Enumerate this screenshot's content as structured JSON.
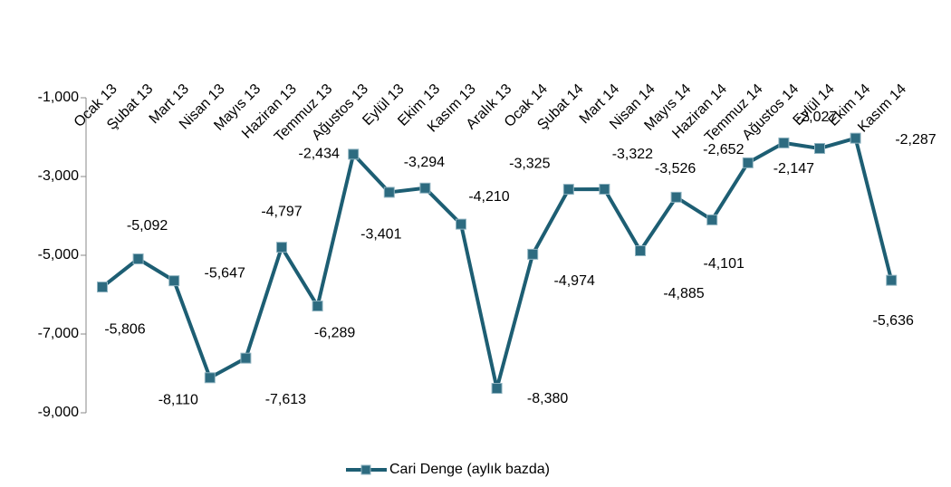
{
  "chart_data": {
    "type": "line",
    "categories": [
      "Ocak 13",
      "Şubat 13",
      "Mart 13",
      "Nisan 13",
      "Mayıs 13",
      "Haziran 13",
      "Temmuz 13",
      "Ağustos 13",
      "Eylül 13",
      "Ekim 13",
      "Kasım 13",
      "Aralık 13",
      "Ocak 14",
      "Şubat 14",
      "Mart 14",
      "Nisan 14",
      "Mayıs 14",
      "Haziran 14",
      "Temmuz 14",
      "Ağustos 14",
      "Eylül 14",
      "Ekim 14",
      "Kasım 14"
    ],
    "series": [
      {
        "name": "Cari Denge (aylık bazda)",
        "color": "#1d5e73",
        "values": [
          -5806,
          -5092,
          -5647,
          -8110,
          -7613,
          -4797,
          -6289,
          -2434,
          -3401,
          -3294,
          -4210,
          -8380,
          -4974,
          -3325,
          -3322,
          -4885,
          -3526,
          -4101,
          -2652,
          -2147,
          -2287,
          -2027,
          -5636
        ],
        "value_labels": [
          "-5,806",
          "-5,092",
          "-5,647",
          "-8,110",
          "-7,613",
          "-4,797",
          "-6,289",
          "-2,434",
          "-3,401",
          "-3,294",
          "-4,210",
          "-8,380",
          "-4,974",
          "-3,325",
          "-3,322",
          "-4,885",
          "-3,526",
          "-4,101",
          "-2,652",
          "-2,147",
          "-2,287",
          "-2,027",
          "-5,636"
        ]
      }
    ],
    "ylim": [
      -9000,
      -1000
    ],
    "yticks": [
      {
        "value": -1000,
        "label": "-1,000"
      },
      {
        "value": -3000,
        "label": "-3,000"
      },
      {
        "value": -5000,
        "label": "-5,000"
      },
      {
        "value": -7000,
        "label": "-7,000"
      },
      {
        "value": -9000,
        "label": "-9,000"
      }
    ],
    "legend": "bottom"
  }
}
